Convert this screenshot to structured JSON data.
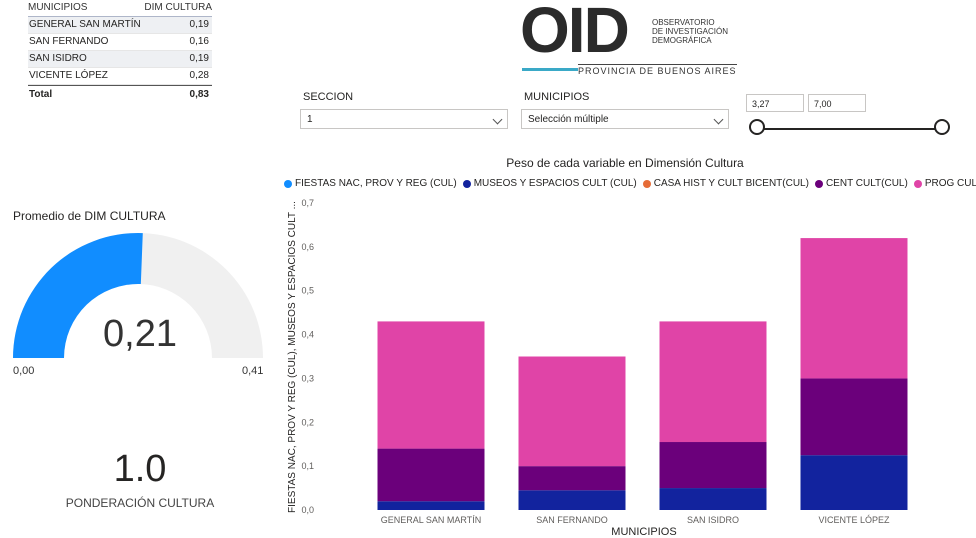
{
  "table": {
    "headers": [
      "MUNICIPIOS",
      "DIM CULTURA"
    ],
    "rows": [
      {
        "municipio": "GENERAL SAN MARTÍN",
        "valor": "0,19"
      },
      {
        "municipio": "SAN FERNANDO",
        "valor": "0,16"
      },
      {
        "municipio": "SAN ISIDRO",
        "valor": "0,19"
      },
      {
        "municipio": "VICENTE LÓPEZ",
        "valor": "0,28"
      }
    ],
    "total_label": "Total",
    "total_value": "0,83"
  },
  "logo": {
    "main": "OID",
    "sub": [
      "OBSERVATORIO",
      "DE INVESTIGACIÓN",
      "DEMOGRÁFICA"
    ],
    "province": "PROVINCIA DE BUENOS AIRES",
    "accent": "#3aa9c7"
  },
  "slicers": {
    "seccion": {
      "label": "SECCION",
      "value": "1"
    },
    "municipios": {
      "label": "MUNICIPIOS",
      "value": "Selección múltiple"
    },
    "range": {
      "min": "3,27",
      "max": "7,00"
    }
  },
  "gauge": {
    "title": "Promedio de DIM CULTURA",
    "value": 0.21,
    "value_text": "0,21",
    "min": 0,
    "max": 0.41,
    "min_text": "0,00",
    "max_text": "0,41",
    "fill_color": "#118dff",
    "track_color": "#f0f0f0"
  },
  "card": {
    "value": "1.0",
    "label": "PONDERACIÓN CULTURA"
  },
  "chart_data": {
    "type": "bar",
    "stacked": true,
    "title": "Peso de cada variable en Dimensión Cultura",
    "xlabel": "MUNICIPIOS",
    "ylabel": "FIESTAS NAC, PROV Y REG (CUL), MUSEOS Y ESPACIOS CULT ...",
    "ylim": [
      0,
      0.7
    ],
    "yticks": [
      0,
      0.1,
      0.2,
      0.3,
      0.4,
      0.5,
      0.6,
      0.7
    ],
    "ytick_labels": [
      "0,0",
      "0,1",
      "0,2",
      "0,3",
      "0,4",
      "0,5",
      "0,6",
      "0,7"
    ],
    "categories": [
      "GENERAL SAN MARTÍN",
      "SAN FERNANDO",
      "SAN ISIDRO",
      "VICENTE LÓPEZ"
    ],
    "series": [
      {
        "name": "FIESTAS NAC, PROV Y REG (CUL)",
        "color": "#118dff",
        "values": [
          0.0,
          0.0,
          0.0,
          0.0
        ]
      },
      {
        "name": "MUSEOS Y ESPACIOS CULT (CUL)",
        "color": "#12239e",
        "values": [
          0.02,
          0.045,
          0.05,
          0.125
        ]
      },
      {
        "name": "CASA HIST Y CULT BICENT(CUL)",
        "color": "#e66c37",
        "values": [
          0.0,
          0.0,
          0.0,
          0.0
        ]
      },
      {
        "name": "CENT CULT(CUL)",
        "color": "#6b007b",
        "values": [
          0.12,
          0.055,
          0.105,
          0.175
        ]
      },
      {
        "name": "PROG CULT (CUL)",
        "color": "#e044a7",
        "values": [
          0.29,
          0.25,
          0.275,
          0.32
        ]
      }
    ],
    "legend_position": "top-left",
    "grid": false
  }
}
